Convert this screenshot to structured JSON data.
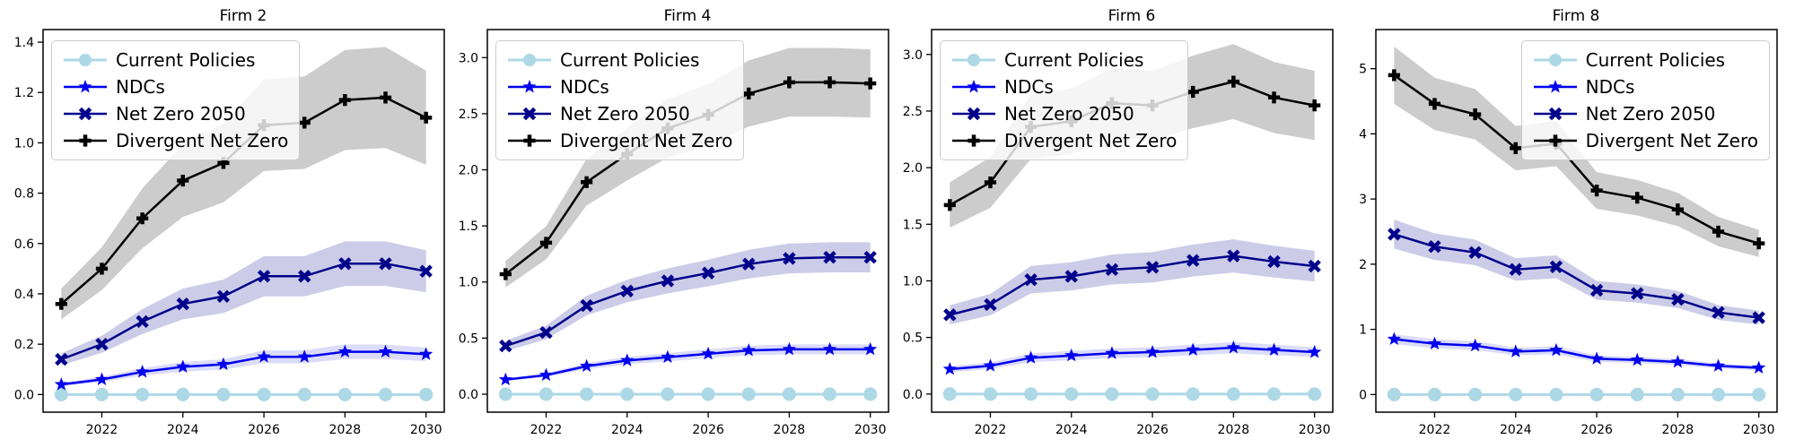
{
  "figure": {
    "background_color": "#ffffff",
    "axes_color": "#000000"
  },
  "legend": {
    "entries": [
      {
        "label": "Current Policies",
        "color": "#ADD8E6",
        "marker": "circle",
        "band_color": null,
        "line_width": 3
      },
      {
        "label": "NDCs",
        "color": "#0000EE",
        "marker": "star",
        "band_color": "rgba(0,0,220,0.14)",
        "line_width": 2.5
      },
      {
        "label": "Net Zero 2050",
        "color": "#00008B",
        "marker": "x",
        "band_color": "rgba(0,0,139,0.20)",
        "line_width": 2.5
      },
      {
        "label": "Divergent Net Zero",
        "color": "#000000",
        "marker": "plus",
        "band_color": "rgba(0,0,0,0.20)",
        "line_width": 2.5
      }
    ]
  },
  "chart_data": [
    {
      "type": "line",
      "title": "Firm 2",
      "xlabel": "",
      "ylabel": "",
      "x": [
        2021,
        2022,
        2023,
        2024,
        2025,
        2026,
        2027,
        2028,
        2029,
        2030
      ],
      "xticks": [
        2022,
        2024,
        2026,
        2028,
        2030
      ],
      "xlim": [
        2020.55,
        2030.45
      ],
      "ylim": [
        -0.07,
        1.45
      ],
      "ytick_values": [
        0.0,
        0.2,
        0.4,
        0.6,
        0.8,
        1.0,
        1.2,
        1.4
      ],
      "ytick_labels": [
        "0.0",
        "0.2",
        "0.4",
        "0.6",
        "0.8",
        "1.0",
        "1.2",
        "1.4"
      ],
      "grid": false,
      "legend_position": "upper-left",
      "band_frac": 0.17,
      "series": [
        {
          "name": "Current Policies",
          "values": [
            0.0,
            0.0,
            0.0,
            0.0,
            0.0,
            0.0,
            0.0,
            0.0,
            0.0,
            0.0
          ]
        },
        {
          "name": "NDCs",
          "values": [
            0.04,
            0.06,
            0.09,
            0.11,
            0.12,
            0.15,
            0.15,
            0.17,
            0.17,
            0.16
          ]
        },
        {
          "name": "Net Zero 2050",
          "values": [
            0.14,
            0.2,
            0.29,
            0.36,
            0.39,
            0.47,
            0.47,
            0.52,
            0.52,
            0.49
          ]
        },
        {
          "name": "Divergent Net Zero",
          "values": [
            0.36,
            0.5,
            0.7,
            0.85,
            0.92,
            1.07,
            1.08,
            1.17,
            1.18,
            1.1
          ]
        }
      ]
    },
    {
      "type": "line",
      "title": "Firm 4",
      "xlabel": "",
      "ylabel": "",
      "x": [
        2021,
        2022,
        2023,
        2024,
        2025,
        2026,
        2027,
        2028,
        2029,
        2030
      ],
      "xticks": [
        2022,
        2024,
        2026,
        2028,
        2030
      ],
      "xlim": [
        2020.55,
        2030.45
      ],
      "ylim": [
        -0.16,
        3.25
      ],
      "ytick_values": [
        0.0,
        0.5,
        1.0,
        1.5,
        2.0,
        2.5,
        3.0
      ],
      "ytick_labels": [
        "0.0",
        "0.5",
        "1.0",
        "1.5",
        "2.0",
        "2.5",
        "3.0"
      ],
      "grid": false,
      "legend_position": "upper-left",
      "band_frac": 0.11,
      "series": [
        {
          "name": "Current Policies",
          "values": [
            0.0,
            0.0,
            0.0,
            0.0,
            0.0,
            0.0,
            0.0,
            0.0,
            0.0,
            0.0
          ]
        },
        {
          "name": "NDCs",
          "values": [
            0.13,
            0.17,
            0.25,
            0.3,
            0.33,
            0.36,
            0.39,
            0.4,
            0.4,
            0.4
          ]
        },
        {
          "name": "Net Zero 2050",
          "values": [
            0.43,
            0.55,
            0.79,
            0.92,
            1.01,
            1.08,
            1.16,
            1.21,
            1.22,
            1.22
          ]
        },
        {
          "name": "Divergent Net Zero",
          "values": [
            1.07,
            1.35,
            1.89,
            2.14,
            2.37,
            2.49,
            2.68,
            2.78,
            2.78,
            2.77
          ]
        }
      ]
    },
    {
      "type": "line",
      "title": "Firm 6",
      "xlabel": "",
      "ylabel": "",
      "x": [
        2021,
        2022,
        2023,
        2024,
        2025,
        2026,
        2027,
        2028,
        2029,
        2030
      ],
      "xticks": [
        2022,
        2024,
        2026,
        2028,
        2030
      ],
      "xlim": [
        2020.55,
        2030.45
      ],
      "ylim": [
        -0.16,
        3.22
      ],
      "ytick_values": [
        0.0,
        0.5,
        1.0,
        1.5,
        2.0,
        2.5,
        3.0
      ],
      "ytick_labels": [
        "0.0",
        "0.5",
        "1.0",
        "1.5",
        "2.0",
        "2.5",
        "3.0"
      ],
      "grid": false,
      "legend_position": "upper-left",
      "band_frac": 0.12,
      "series": [
        {
          "name": "Current Policies",
          "values": [
            0.0,
            0.0,
            0.0,
            0.0,
            0.0,
            0.0,
            0.0,
            0.0,
            0.0,
            0.0
          ]
        },
        {
          "name": "NDCs",
          "values": [
            0.22,
            0.25,
            0.32,
            0.34,
            0.36,
            0.37,
            0.39,
            0.41,
            0.39,
            0.37
          ]
        },
        {
          "name": "Net Zero 2050",
          "values": [
            0.7,
            0.79,
            1.01,
            1.04,
            1.1,
            1.12,
            1.18,
            1.22,
            1.17,
            1.13
          ]
        },
        {
          "name": "Divergent Net Zero",
          "values": [
            1.67,
            1.87,
            2.36,
            2.41,
            2.57,
            2.55,
            2.67,
            2.76,
            2.62,
            2.55
          ]
        }
      ]
    },
    {
      "type": "line",
      "title": "Firm 8",
      "xlabel": "",
      "ylabel": "",
      "x": [
        2021,
        2022,
        2023,
        2024,
        2025,
        2026,
        2027,
        2028,
        2029,
        2030
      ],
      "xticks": [
        2022,
        2024,
        2026,
        2028,
        2030
      ],
      "xlim": [
        2020.55,
        2030.45
      ],
      "ylim": [
        -0.27,
        5.6
      ],
      "ytick_values": [
        0,
        1,
        2,
        3,
        4,
        5
      ],
      "ytick_labels": [
        "0",
        "1",
        "2",
        "3",
        "4",
        "5"
      ],
      "grid": false,
      "legend_position": "upper-right",
      "band_frac": 0.09,
      "series": [
        {
          "name": "Current Policies",
          "values": [
            0.0,
            0.0,
            0.0,
            0.0,
            0.0,
            0.0,
            0.0,
            0.0,
            0.0,
            0.0
          ]
        },
        {
          "name": "NDCs",
          "values": [
            0.85,
            0.78,
            0.75,
            0.66,
            0.68,
            0.55,
            0.53,
            0.5,
            0.44,
            0.41
          ]
        },
        {
          "name": "Net Zero 2050",
          "values": [
            2.46,
            2.27,
            2.18,
            1.92,
            1.96,
            1.6,
            1.55,
            1.46,
            1.26,
            1.18
          ]
        },
        {
          "name": "Divergent Net Zero",
          "values": [
            4.9,
            4.46,
            4.3,
            3.78,
            3.85,
            3.13,
            3.02,
            2.84,
            2.5,
            2.32
          ]
        }
      ]
    }
  ]
}
